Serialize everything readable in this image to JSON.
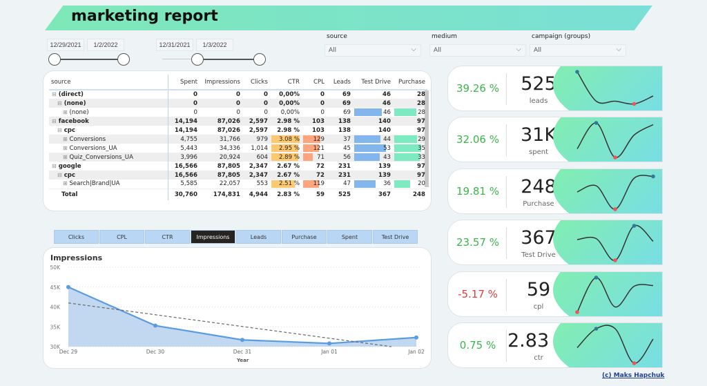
{
  "title": "marketing report",
  "date_range_1": {
    "start": "12/29/2021",
    "end": "1/2/2022"
  },
  "date_range_2": {
    "start": "12/31/2021",
    "end": "1/3/2022"
  },
  "filters": [
    {
      "label": "source",
      "value": "All"
    },
    {
      "label": "medium",
      "value": "All"
    },
    {
      "label": "campaign (groups)",
      "value": "All"
    }
  ],
  "table": {
    "columns": [
      "source",
      "Spent",
      "Impressions",
      "Clicks",
      "CTR",
      "CPL",
      "Leads",
      "Test Drive",
      "Purchase"
    ],
    "rows": [
      {
        "level": 0,
        "exp": "⊟",
        "b": true,
        "cells": [
          "(direct)",
          "0",
          "0",
          "0",
          "0,00%",
          "0",
          "69",
          "46",
          "28"
        ]
      },
      {
        "level": 1,
        "exp": "⊟",
        "b": true,
        "g": true,
        "cells": [
          "(none)",
          "0",
          "0",
          "0",
          "0,00%",
          "0",
          "69",
          "46",
          "28"
        ]
      },
      {
        "level": 2,
        "exp": "⊞",
        "cells": [
          "(none)",
          "0",
          "0",
          "0",
          "0,00%",
          "0",
          "69",
          "46",
          "28"
        ]
      },
      {
        "level": 0,
        "exp": "⊟",
        "b": true,
        "g": true,
        "cells": [
          "facebook",
          "14,194",
          "87,026",
          "2,597",
          "2.98 %",
          "103",
          "138",
          "140",
          "97"
        ]
      },
      {
        "level": 1,
        "exp": "⊟",
        "b": true,
        "cells": [
          "cpc",
          "14,194",
          "87,026",
          "2,597",
          "2.98 %",
          "103",
          "138",
          "140",
          "97"
        ]
      },
      {
        "level": 2,
        "exp": "⊞",
        "g": true,
        "cells": [
          "Conversions",
          "4,755",
          "31,766",
          "979",
          "3.08 %",
          "129",
          "37",
          "44",
          "29"
        ]
      },
      {
        "level": 2,
        "exp": "⊞",
        "cells": [
          "Conversions_UA",
          "5,443",
          "34,336",
          "1,014",
          "2.95 %",
          "121",
          "45",
          "53",
          "35"
        ]
      },
      {
        "level": 2,
        "exp": "⊞",
        "g": true,
        "cells": [
          "Quiz_Conversions_UA",
          "3,996",
          "20,924",
          "604",
          "2.89 %",
          "71",
          "56",
          "43",
          "33"
        ]
      },
      {
        "level": 0,
        "exp": "⊟",
        "b": true,
        "cells": [
          "google",
          "16,566",
          "87,805",
          "2,347",
          "2.67 %",
          "72",
          "231",
          "139",
          "97"
        ]
      },
      {
        "level": 1,
        "exp": "⊟",
        "b": true,
        "g": true,
        "cells": [
          "cpc",
          "16,566",
          "87,805",
          "2,347",
          "2.67 %",
          "72",
          "231",
          "139",
          "97"
        ]
      },
      {
        "level": 2,
        "exp": "⊞",
        "cells": [
          "Search|Brand|UA",
          "5,585",
          "22,057",
          "553",
          "2.51 %",
          "119",
          "47",
          "36",
          "20"
        ]
      }
    ],
    "total": [
      "Total",
      "30,760",
      "174,831",
      "4,944",
      "2.83 %",
      "59",
      "525",
      "367",
      "248"
    ]
  },
  "metric_tabs": [
    "Clicks",
    "CPL",
    "CTR",
    "Impressions",
    "Leads",
    "Purchase",
    "Spent",
    "Test Drive"
  ],
  "active_tab": "Impressions",
  "colors": {
    "ctr_bar": "#fcc870",
    "cpl_bar": "#fca57e",
    "testdrive_bar": "#82b6ec",
    "purchase_bar": "#7deac2",
    "line": "#5b9be0",
    "area": "#c2d8f0",
    "positive": "#3ab54a",
    "negative": "#e23b3b"
  },
  "chart_data": {
    "type": "area",
    "title": "Impressions",
    "xlabel": "Year",
    "categories": [
      "Dec 29",
      "Dec 30",
      "Dec 31",
      "Jan 01",
      "Jan 02"
    ],
    "values": [
      45000,
      35300,
      31700,
      30800,
      32300
    ],
    "trend": [
      41000,
      29400
    ],
    "ylim": [
      30000,
      50000
    ],
    "yticks": [
      "30K",
      "35K",
      "40K",
      "45K",
      "50K"
    ],
    "grid": true
  },
  "kpis": [
    {
      "pct": "39.26 %",
      "value": "525",
      "label": "leads",
      "neg": false,
      "spark": [
        1,
        0.15,
        0.15,
        0.07,
        0.3
      ]
    },
    {
      "pct": "32.06 %",
      "value": "31K",
      "label": "spent",
      "neg": false,
      "spark": [
        0.25,
        1,
        0,
        0.65,
        0.95
      ]
    },
    {
      "pct": "19.81 %",
      "value": "248",
      "label": "Purchase",
      "neg": false,
      "spark": [
        0.5,
        0.68,
        0,
        0.9,
        0.95
      ]
    },
    {
      "pct": "23.57 %",
      "value": "367",
      "label": "Test Drive",
      "neg": false,
      "spark": [
        0.6,
        0.63,
        0,
        1,
        0.55
      ]
    },
    {
      "pct": "-5.17 %",
      "value": "59",
      "label": "cpl",
      "neg": true,
      "spark": [
        0,
        1,
        0.15,
        0.75,
        0.77
      ]
    },
    {
      "pct": "0.75 %",
      "value": "2.83 %",
      "label": "ctr",
      "neg": false,
      "spark": [
        0.45,
        1,
        1,
        0,
        0.7
      ]
    }
  ],
  "credit": "(c) Maks Hapchuk"
}
